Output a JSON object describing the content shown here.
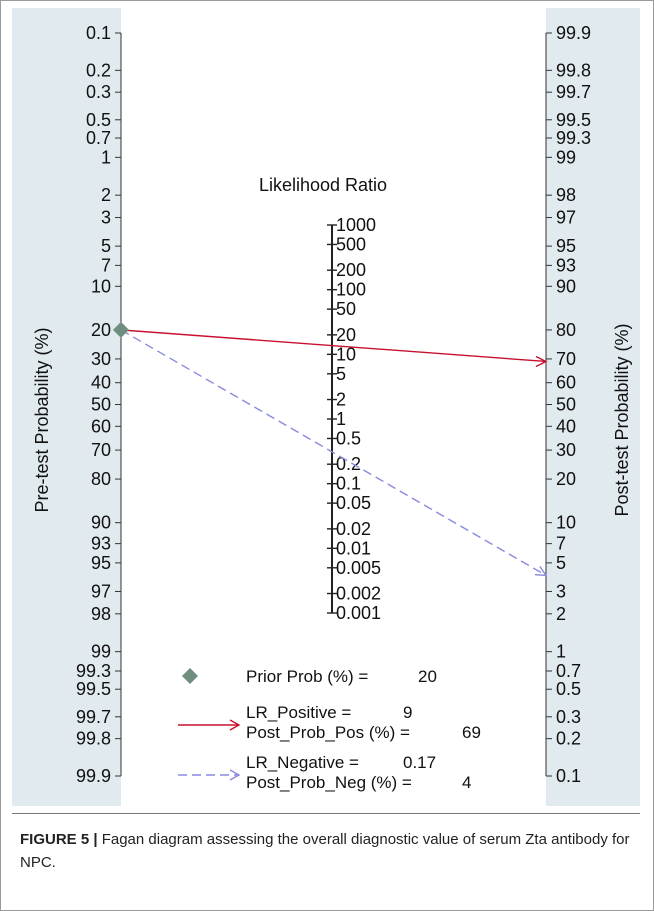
{
  "chart_data": {
    "type": "fagan nomogram",
    "left_axis": {
      "label": "Pre-test Probability (%)",
      "ticks": [
        "0.1",
        "0.2",
        "0.3",
        "0.5",
        "0.7",
        "1",
        "2",
        "3",
        "5",
        "7",
        "10",
        "20",
        "30",
        "40",
        "50",
        "60",
        "70",
        "80",
        "90",
        "93",
        "95",
        "97",
        "98",
        "99",
        "99.3",
        "99.5",
        "99.7",
        "99.8",
        "99.9"
      ]
    },
    "right_axis": {
      "label": "Post-test Probability (%)",
      "ticks": [
        "99.9",
        "99.8",
        "99.7",
        "99.5",
        "99.3",
        "99",
        "98",
        "97",
        "95",
        "93",
        "90",
        "80",
        "70",
        "60",
        "50",
        "40",
        "30",
        "20",
        "10",
        "7",
        "5",
        "3",
        "2",
        "1",
        "0.7",
        "0.5",
        "0.3",
        "0.2",
        "0.1"
      ]
    },
    "middle_axis": {
      "label": "Likelihood Ratio",
      "ticks": [
        "1000",
        "500",
        "200",
        "100",
        "50",
        "20",
        "10",
        "5",
        "2",
        "1",
        "0.5",
        "0.2",
        "0.1",
        "0.05",
        "0.02",
        "0.01",
        "0.005",
        "0.002",
        "0.001"
      ]
    },
    "prior_prob": 20,
    "lr_positive": 9,
    "post_prob_pos": 69,
    "lr_negative": 0.17,
    "post_prob_neg": 4,
    "legend": {
      "prior_label": "Prior Prob (%) =",
      "prior_value": "20",
      "lrpos_label": "LR_Positive =",
      "lrpos_value": "9",
      "postpos_label": "Post_Prob_Pos (%) =",
      "postpos_value": "69",
      "lrneg_label": "LR_Negative =",
      "lrneg_value": "0.17",
      "postneg_label": "Post_Prob_Neg (%) =",
      "postneg_value": "4"
    },
    "colors": {
      "background": "#e1eaee",
      "plot_area": "#ffffff",
      "positive_line": "#c8102e",
      "negative_line": "#8a8ae0",
      "prior_marker": "#6f8e80"
    }
  },
  "caption": {
    "label": "FIGURE 5 |",
    "text": " Fagan diagram assessing the overall diagnostic value of serum Zta antibody for NPC."
  }
}
